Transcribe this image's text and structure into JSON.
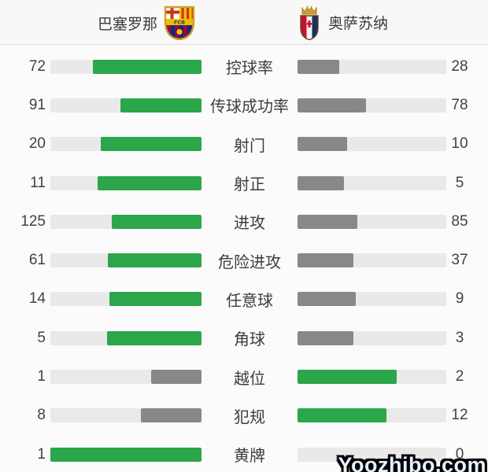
{
  "header": {
    "home_team": "巴塞罗那",
    "away_team": "奥萨苏纳"
  },
  "stats": [
    {
      "label": "控球率",
      "home": 72,
      "away": 28
    },
    {
      "label": "传球成功率",
      "home": 91,
      "away": 78
    },
    {
      "label": "射门",
      "home": 20,
      "away": 10
    },
    {
      "label": "射正",
      "home": 11,
      "away": 5
    },
    {
      "label": "进攻",
      "home": 125,
      "away": 85
    },
    {
      "label": "危险进攻",
      "home": 61,
      "away": 37
    },
    {
      "label": "任意球",
      "home": 14,
      "away": 9
    },
    {
      "label": "角球",
      "home": 5,
      "away": 3
    },
    {
      "label": "越位",
      "home": 1,
      "away": 2
    },
    {
      "label": "犯规",
      "home": 8,
      "away": 12
    },
    {
      "label": "黄牌",
      "home": 1,
      "away": 0
    }
  ],
  "colors": {
    "win_bar": "#2ba64a",
    "lose_bar": "#888888",
    "track": "#e9e9e9",
    "text": "#404040",
    "divider": "#dcdcdc"
  },
  "icons": {
    "home_crest": "barcelona-crest",
    "away_crest": "osasuna-crest"
  },
  "watermark": "Yoozhibo.com"
}
